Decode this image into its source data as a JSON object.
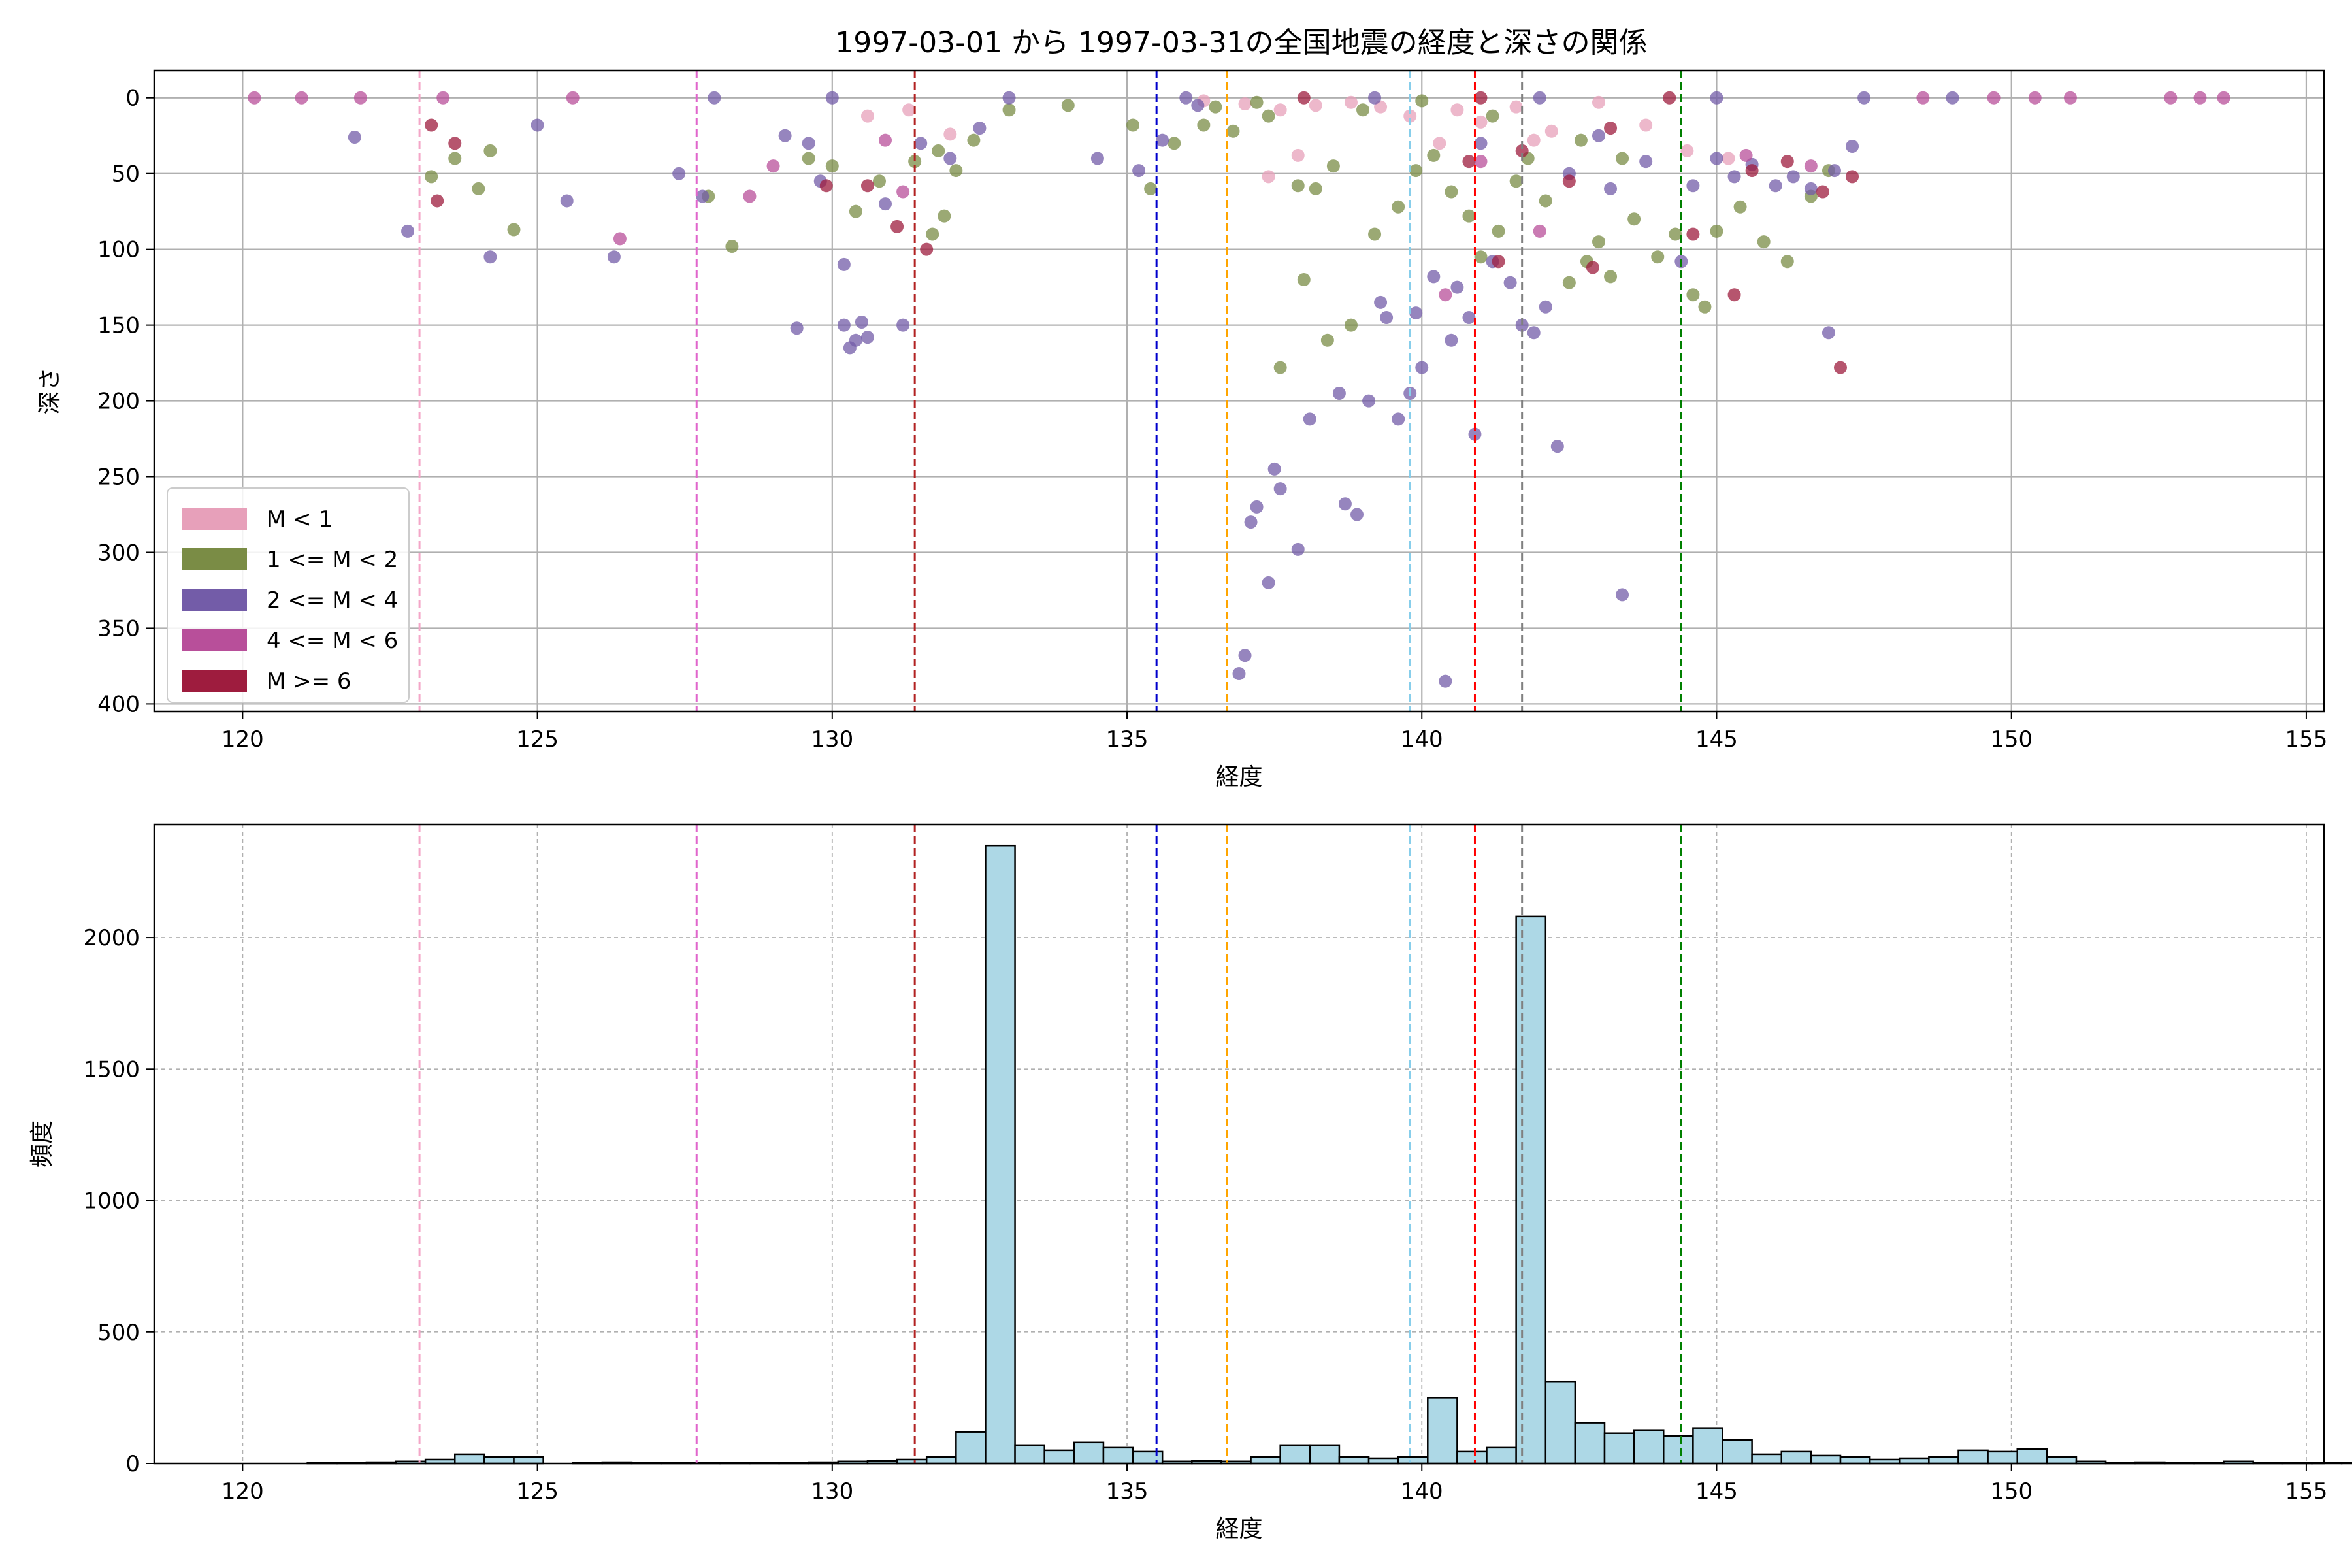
{
  "figure_title": "1997-03-01 から 1997-03-31の全国地震の経度と深さの関係",
  "colors": {
    "m_lt1": "#e7a0ba",
    "m_1_2": "#7a8c45",
    "m_2_4": "#735ca8",
    "m_4_6": "#b84f9a",
    "m_ge6": "#9e1c3e",
    "hist_fill": "#add8e6",
    "hist_edge": "#000000"
  },
  "reference_lines": [
    {
      "x": 123.0,
      "color": "#f4a6c8"
    },
    {
      "x": 127.7,
      "color": "#e066cc"
    },
    {
      "x": 131.4,
      "color": "#b22222"
    },
    {
      "x": 135.5,
      "color": "#0000cc"
    },
    {
      "x": 136.7,
      "color": "#ffa500"
    },
    {
      "x": 139.8,
      "color": "#87ceeb"
    },
    {
      "x": 140.9,
      "color": "#ff0000"
    },
    {
      "x": 141.7,
      "color": "#808080"
    },
    {
      "x": 144.4,
      "color": "#008000"
    }
  ],
  "chart_data": [
    {
      "type": "scatter",
      "title": "1997-03-01 から 1997-03-31の全国地震の経度と深さの関係",
      "xlabel": "経度",
      "ylabel": "深さ",
      "xlim": [
        118.5,
        155.3
      ],
      "ylim": [
        405,
        -18
      ],
      "y_inverted": true,
      "xticks": [
        120,
        125,
        130,
        135,
        140,
        145,
        150,
        155
      ],
      "yticks": [
        0,
        50,
        100,
        150,
        200,
        250,
        300,
        350,
        400
      ],
      "grid": true,
      "legend_position": "lower-left",
      "legend": [
        "M < 1",
        "1 <= M < 2",
        "2 <= M < 4",
        "4 <= M < 6",
        "M >= 6"
      ],
      "series": [
        {
          "name": "M < 1",
          "color": "#e7a0ba",
          "points": [
            [
              136.3,
              2
            ],
            [
              137.0,
              4
            ],
            [
              137.6,
              8
            ],
            [
              138.2,
              5
            ],
            [
              138.8,
              3
            ],
            [
              139.3,
              6
            ],
            [
              139.8,
              12
            ],
            [
              140.3,
              30
            ],
            [
              141.0,
              16
            ],
            [
              141.6,
              6
            ],
            [
              142.2,
              22
            ],
            [
              143.0,
              3
            ],
            [
              143.8,
              18
            ],
            [
              144.5,
              35
            ],
            [
              145.2,
              40
            ],
            [
              132.0,
              24
            ],
            [
              131.3,
              8
            ],
            [
              130.6,
              12
            ],
            [
              137.4,
              52
            ],
            [
              137.9,
              38
            ],
            [
              140.6,
              8
            ],
            [
              141.9,
              28
            ]
          ]
        },
        {
          "name": "1 <= M < 2",
          "color": "#7a8c45",
          "points": [
            [
              123.2,
              52
            ],
            [
              123.6,
              40
            ],
            [
              124.2,
              35
            ],
            [
              124.0,
              60
            ],
            [
              124.6,
              87
            ],
            [
              127.9,
              65
            ],
            [
              128.3,
              98
            ],
            [
              129.6,
              40
            ],
            [
              130.0,
              45
            ],
            [
              130.4,
              75
            ],
            [
              130.8,
              55
            ],
            [
              131.4,
              42
            ],
            [
              131.8,
              35
            ],
            [
              132.1,
              48
            ],
            [
              132.4,
              28
            ],
            [
              131.7,
              90
            ],
            [
              131.9,
              78
            ],
            [
              133.0,
              8
            ],
            [
              134.0,
              5
            ],
            [
              135.1,
              18
            ],
            [
              135.4,
              60
            ],
            [
              135.8,
              30
            ],
            [
              136.3,
              18
            ],
            [
              136.8,
              22
            ],
            [
              137.4,
              12
            ],
            [
              137.9,
              58
            ],
            [
              138.2,
              60
            ],
            [
              138.5,
              45
            ],
            [
              138.0,
              120
            ],
            [
              137.6,
              178
            ],
            [
              138.4,
              160
            ],
            [
              138.8,
              150
            ],
            [
              139.2,
              90
            ],
            [
              139.6,
              72
            ],
            [
              139.9,
              48
            ],
            [
              140.2,
              38
            ],
            [
              140.5,
              62
            ],
            [
              140.8,
              78
            ],
            [
              141.0,
              105
            ],
            [
              141.3,
              88
            ],
            [
              141.6,
              55
            ],
            [
              141.8,
              40
            ],
            [
              142.1,
              68
            ],
            [
              142.5,
              122
            ],
            [
              142.8,
              108
            ],
            [
              143.0,
              95
            ],
            [
              143.2,
              118
            ],
            [
              143.6,
              80
            ],
            [
              144.0,
              105
            ],
            [
              144.3,
              90
            ],
            [
              144.6,
              130
            ],
            [
              145.0,
              88
            ],
            [
              145.4,
              72
            ],
            [
              145.8,
              95
            ],
            [
              146.2,
              108
            ],
            [
              146.6,
              65
            ],
            [
              146.9,
              48
            ],
            [
              144.8,
              138
            ],
            [
              136.5,
              6
            ],
            [
              137.2,
              3
            ],
            [
              139.0,
              8
            ],
            [
              140.0,
              2
            ],
            [
              141.2,
              12
            ],
            [
              142.7,
              28
            ],
            [
              143.4,
              40
            ]
          ]
        },
        {
          "name": "2 <= M < 4",
          "color": "#735ca8",
          "points": [
            [
              121.9,
              26
            ],
            [
              122.8,
              88
            ],
            [
              124.2,
              105
            ],
            [
              125.0,
              18
            ],
            [
              125.5,
              68
            ],
            [
              126.3,
              105
            ],
            [
              127.4,
              50
            ],
            [
              127.8,
              65
            ],
            [
              129.2,
              25
            ],
            [
              129.6,
              30
            ],
            [
              129.4,
              152
            ],
            [
              129.8,
              55
            ],
            [
              130.2,
              150
            ],
            [
              130.4,
              160
            ],
            [
              130.5,
              148
            ],
            [
              130.6,
              158
            ],
            [
              130.3,
              165
            ],
            [
              130.2,
              110
            ],
            [
              130.9,
              70
            ],
            [
              131.2,
              150
            ],
            [
              131.5,
              30
            ],
            [
              132.0,
              40
            ],
            [
              132.5,
              20
            ],
            [
              134.5,
              40
            ],
            [
              135.2,
              48
            ],
            [
              135.6,
              28
            ],
            [
              136.2,
              5
            ],
            [
              136.9,
              380
            ],
            [
              137.0,
              368
            ],
            [
              137.1,
              280
            ],
            [
              137.2,
              270
            ],
            [
              137.4,
              320
            ],
            [
              137.5,
              245
            ],
            [
              137.6,
              258
            ],
            [
              137.9,
              298
            ],
            [
              138.1,
              212
            ],
            [
              138.6,
              195
            ],
            [
              138.7,
              268
            ],
            [
              138.9,
              275
            ],
            [
              139.1,
              200
            ],
            [
              139.3,
              135
            ],
            [
              139.4,
              145
            ],
            [
              139.6,
              212
            ],
            [
              139.8,
              195
            ],
            [
              139.9,
              142
            ],
            [
              140.0,
              178
            ],
            [
              140.2,
              118
            ],
            [
              140.4,
              385
            ],
            [
              140.5,
              160
            ],
            [
              140.6,
              125
            ],
            [
              140.8,
              145
            ],
            [
              140.9,
              222
            ],
            [
              141.0,
              30
            ],
            [
              141.2,
              108
            ],
            [
              141.5,
              122
            ],
            [
              141.7,
              150
            ],
            [
              141.9,
              155
            ],
            [
              142.1,
              138
            ],
            [
              142.3,
              230
            ],
            [
              142.5,
              50
            ],
            [
              143.0,
              25
            ],
            [
              143.2,
              60
            ],
            [
              143.4,
              328
            ],
            [
              143.8,
              42
            ],
            [
              144.4,
              108
            ],
            [
              144.6,
              58
            ],
            [
              145.0,
              40
            ],
            [
              145.3,
              52
            ],
            [
              145.6,
              44
            ],
            [
              146.0,
              58
            ],
            [
              146.3,
              52
            ],
            [
              146.6,
              60
            ],
            [
              146.9,
              155
            ],
            [
              147.0,
              48
            ],
            [
              147.3,
              32
            ],
            [
              128.0,
              0
            ],
            [
              130.0,
              0
            ],
            [
              133.0,
              0
            ],
            [
              136.0,
              0
            ],
            [
              139.2,
              0
            ],
            [
              142.0,
              0
            ],
            [
              145.0,
              0
            ],
            [
              147.5,
              0
            ],
            [
              149.0,
              0
            ]
          ]
        },
        {
          "name": "4 <= M < 6",
          "color": "#b84f9a",
          "points": [
            [
              120.2,
              0
            ],
            [
              121.0,
              0
            ],
            [
              122.0,
              0
            ],
            [
              123.4,
              0
            ],
            [
              125.6,
              0
            ],
            [
              126.4,
              93
            ],
            [
              128.6,
              65
            ],
            [
              129.0,
              45
            ],
            [
              130.9,
              28
            ],
            [
              131.2,
              62
            ],
            [
              140.4,
              130
            ],
            [
              141.0,
              42
            ],
            [
              142.0,
              88
            ],
            [
              145.5,
              38
            ],
            [
              146.6,
              45
            ],
            [
              148.5,
              0
            ],
            [
              149.7,
              0
            ],
            [
              150.4,
              0
            ],
            [
              151.0,
              0
            ],
            [
              152.7,
              0
            ],
            [
              153.2,
              0
            ],
            [
              153.6,
              0
            ]
          ]
        },
        {
          "name": "M >= 6",
          "color": "#9e1c3e",
          "points": [
            [
              123.2,
              18
            ],
            [
              123.3,
              68
            ],
            [
              123.6,
              30
            ],
            [
              129.9,
              58
            ],
            [
              130.6,
              58
            ],
            [
              131.1,
              85
            ],
            [
              131.6,
              100
            ],
            [
              138.0,
              0
            ],
            [
              140.8,
              42
            ],
            [
              141.3,
              108
            ],
            [
              141.7,
              35
            ],
            [
              142.5,
              55
            ],
            [
              143.2,
              20
            ],
            [
              144.2,
              0
            ],
            [
              145.3,
              130
            ],
            [
              145.6,
              48
            ],
            [
              146.2,
              42
            ],
            [
              146.8,
              62
            ],
            [
              147.1,
              178
            ],
            [
              147.3,
              52
            ],
            [
              142.9,
              112
            ],
            [
              144.6,
              90
            ],
            [
              141.0,
              0
            ]
          ]
        }
      ]
    },
    {
      "type": "bar",
      "xlabel": "経度",
      "ylabel": "頻度",
      "xlim": [
        118.5,
        155.3
      ],
      "ylim": [
        0,
        2430
      ],
      "xticks": [
        120,
        125,
        130,
        135,
        140,
        145,
        150,
        155
      ],
      "yticks": [
        0,
        500,
        1000,
        1500,
        2000
      ],
      "grid": true,
      "bin_start": 120.1,
      "bin_width": 0.5,
      "counts": [
        0,
        0,
        2,
        3,
        5,
        8,
        15,
        35,
        25,
        25,
        0,
        3,
        5,
        4,
        4,
        3,
        3,
        2,
        3,
        5,
        8,
        10,
        15,
        25,
        120,
        2350,
        70,
        50,
        80,
        60,
        45,
        8,
        10,
        8,
        25,
        70,
        70,
        25,
        20,
        25,
        250,
        45,
        60,
        2080,
        310,
        155,
        115,
        125,
        105,
        135,
        90,
        35,
        45,
        30,
        25,
        15,
        20,
        25,
        50,
        45,
        55,
        25,
        8,
        3,
        5,
        3,
        4,
        8,
        3,
        2,
        3,
        3,
        2,
        5,
        3,
        2
      ]
    }
  ]
}
